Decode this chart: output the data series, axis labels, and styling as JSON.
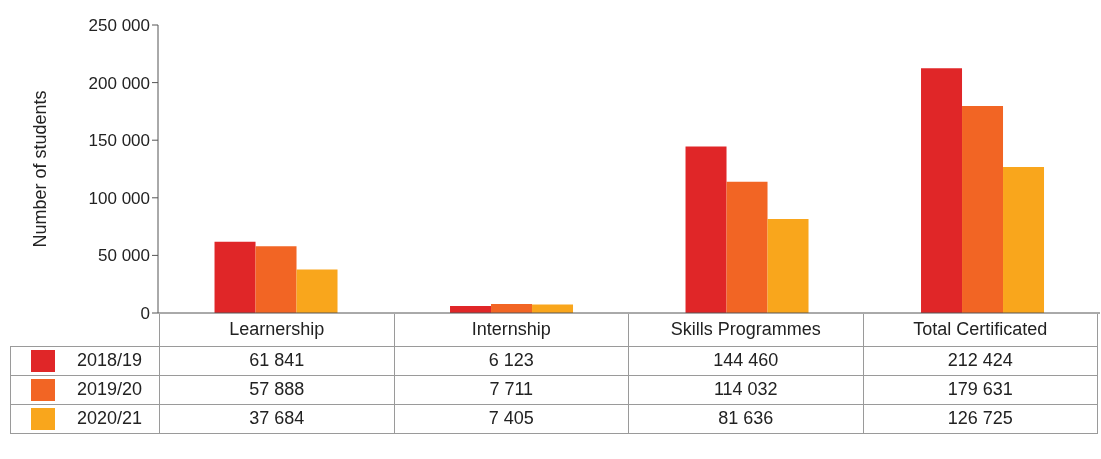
{
  "chart_data": {
    "type": "bar",
    "ylabel": "Number of students",
    "categories": [
      "Learnership",
      "Internship",
      "Skills Programmes",
      "Total Certificated"
    ],
    "series": [
      {
        "name": "2018/19",
        "color": "#e02628",
        "values": [
          61841,
          6123,
          144460,
          212424
        ]
      },
      {
        "name": "2019/20",
        "color": "#f26524",
        "values": [
          57888,
          7711,
          114032,
          179631
        ]
      },
      {
        "name": "2020/21",
        "color": "#f9a61c",
        "values": [
          37684,
          7405,
          81636,
          126725
        ]
      }
    ],
    "ylim": [
      0,
      250000
    ],
    "yticks": [
      {
        "value": 0,
        "label": "0"
      },
      {
        "value": 50000,
        "label": "50 000"
      },
      {
        "value": 100000,
        "label": "100 000"
      },
      {
        "value": 150000,
        "label": "150 000"
      },
      {
        "value": 200000,
        "label": "200 000"
      },
      {
        "value": 250000,
        "label": "250 000"
      }
    ],
    "grid": false,
    "legend": "bottom",
    "data_labels": true
  }
}
